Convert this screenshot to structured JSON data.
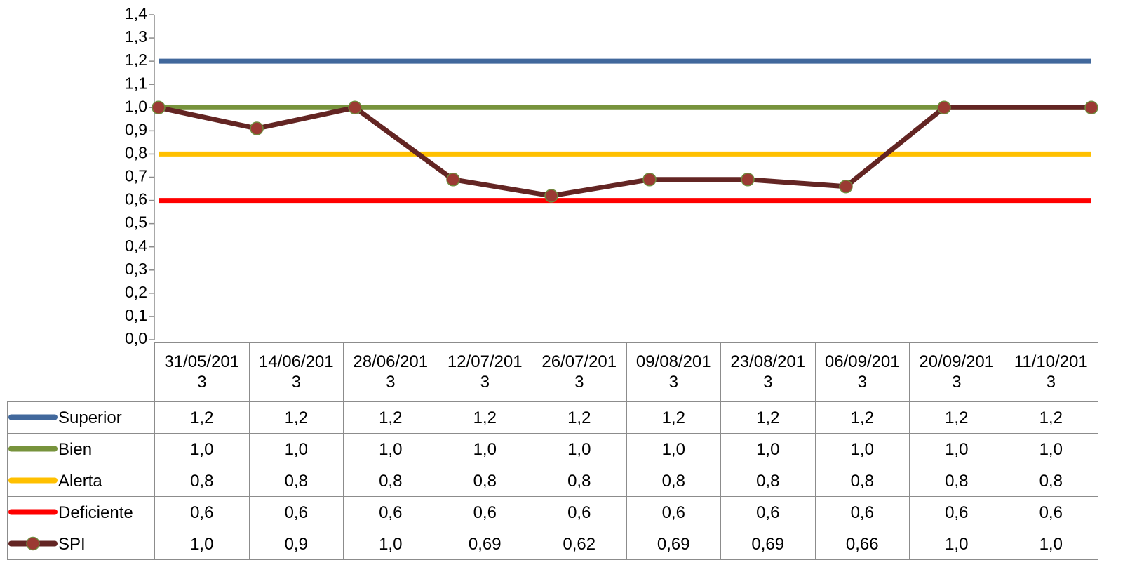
{
  "chart_data": {
    "type": "line",
    "categories": [
      "31/05/2013",
      "14/06/2013",
      "28/06/2013",
      "12/07/2013",
      "26/07/2013",
      "09/08/2013",
      "23/08/2013",
      "06/09/2013",
      "20/09/2013",
      "11/10/2013"
    ],
    "xlim": [
      "31/05/2013",
      "11/10/2013"
    ],
    "ylim": [
      0,
      1.4
    ],
    "yticks": [
      {
        "value": 0,
        "label": "0,0"
      },
      {
        "value": 0.1,
        "label": "0,1"
      },
      {
        "value": 0.2,
        "label": "0,2"
      },
      {
        "value": 0.3,
        "label": "0,3"
      },
      {
        "value": 0.4,
        "label": "0,4"
      },
      {
        "value": 0.5,
        "label": "0,5"
      },
      {
        "value": 0.6,
        "label": "0,6"
      },
      {
        "value": 0.7,
        "label": "0,7"
      },
      {
        "value": 0.8,
        "label": "0,8"
      },
      {
        "value": 0.9,
        "label": "0,9"
      },
      {
        "value": 1.0,
        "label": "1,0"
      },
      {
        "value": 1.1,
        "label": "1,1"
      },
      {
        "value": 1.2,
        "label": "1,2"
      },
      {
        "value": 1.3,
        "label": "1,3"
      },
      {
        "value": 1.4,
        "label": "1,4"
      }
    ],
    "series": [
      {
        "name": "Superior",
        "color": "#41689c",
        "values": [
          1.2,
          1.2,
          1.2,
          1.2,
          1.2,
          1.2,
          1.2,
          1.2,
          1.2,
          1.2
        ],
        "value_labels": [
          "1,2",
          "1,2",
          "1,2",
          "1,2",
          "1,2",
          "1,2",
          "1,2",
          "1,2",
          "1,2",
          "1,2"
        ]
      },
      {
        "name": "Bien",
        "color": "#77933c",
        "values": [
          1.0,
          1.0,
          1.0,
          1.0,
          1.0,
          1.0,
          1.0,
          1.0,
          1.0,
          1.0
        ],
        "value_labels": [
          "1,0",
          "1,0",
          "1,0",
          "1,0",
          "1,0",
          "1,0",
          "1,0",
          "1,0",
          "1,0",
          "1,0"
        ]
      },
      {
        "name": "Alerta",
        "color": "#ffc000",
        "values": [
          0.8,
          0.8,
          0.8,
          0.8,
          0.8,
          0.8,
          0.8,
          0.8,
          0.8,
          0.8
        ],
        "value_labels": [
          "0,8",
          "0,8",
          "0,8",
          "0,8",
          "0,8",
          "0,8",
          "0,8",
          "0,8",
          "0,8",
          "0,8"
        ]
      },
      {
        "name": "Deficiente",
        "color": "#ff0000",
        "values": [
          0.6,
          0.6,
          0.6,
          0.6,
          0.6,
          0.6,
          0.6,
          0.6,
          0.6,
          0.6
        ],
        "value_labels": [
          "0,6",
          "0,6",
          "0,6",
          "0,6",
          "0,6",
          "0,6",
          "0,6",
          "0,6",
          "0,6",
          "0,6"
        ]
      },
      {
        "name": "SPI",
        "color": "#632523",
        "marker_color": "#9b3a33",
        "values": [
          1.0,
          0.91,
          1.0,
          0.69,
          0.62,
          0.69,
          0.69,
          0.66,
          1.0,
          1.0
        ],
        "value_labels": [
          "1,0",
          "0,9",
          "1,0",
          "0,69",
          "0,62",
          "0,69",
          "0,69",
          "0,66",
          "1,0",
          "1,0"
        ]
      }
    ]
  }
}
